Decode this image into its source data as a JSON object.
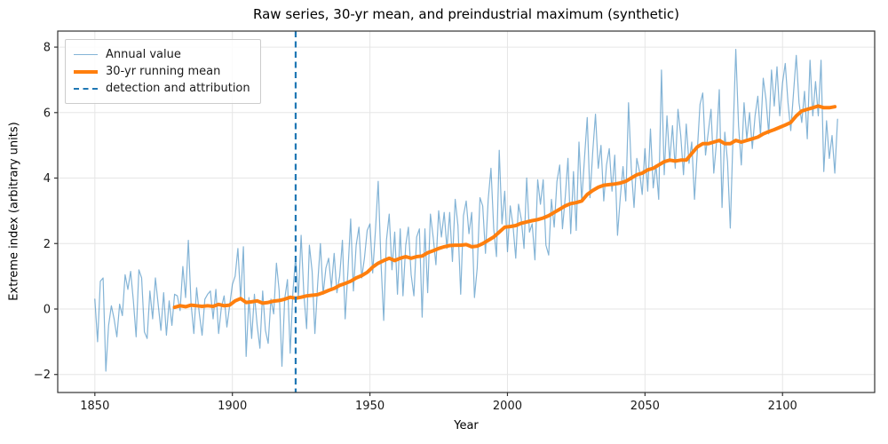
{
  "title": "Raw series, 30-yr mean, and preindustrial maximum (synthetic)",
  "xlabel": "Year",
  "ylabel": "Extreme index (arbitrary units)",
  "legend": {
    "position": "upper left",
    "items": [
      {
        "label": "Annual value",
        "swatch": "thin-line",
        "color": "#1f77b4",
        "alpha": 0.55
      },
      {
        "label": "30-yr running mean",
        "swatch": "thick-line",
        "color": "#ff7f0e"
      },
      {
        "label": "detection and attribution",
        "swatch": "dashed-line",
        "color": "#1f77b4"
      }
    ]
  },
  "colors": {
    "annual_line": "#1f77b4",
    "annual_alpha": 0.55,
    "running_mean_line": "#ff7f0e",
    "detection_line": "#1f77b4",
    "grid": "#e6e6e6",
    "spine": "#333333",
    "tick_text": "#1a1a1a",
    "background": "#ffffff"
  },
  "chart_data": {
    "type": "line",
    "title": "Raw series, 30-yr mean, and preindustrial maximum (synthetic)",
    "xlabel": "Year",
    "ylabel": "Extreme index (arbitrary units)",
    "grid": true,
    "legend_position": "upper left",
    "xlim": [
      1836.5,
      2133.5
    ],
    "ylim": [
      -2.55,
      8.49
    ],
    "xticks": [
      1850,
      1900,
      1950,
      2000,
      2050,
      2100
    ],
    "xtick_labels": [
      "1850",
      "1900",
      "1950",
      "2000",
      "2050",
      "2100"
    ],
    "yticks": [
      -2,
      0,
      2,
      4,
      6,
      8
    ],
    "ytick_labels": [
      "−2",
      "0",
      "2",
      "4",
      "6",
      "8"
    ],
    "series": [
      {
        "name": "Annual value",
        "kind": "line",
        "color": "#1f77b4",
        "alpha": 0.55,
        "line_width": 1.2,
        "start_year": 1850,
        "step": 1,
        "values": [
          0.3,
          -1.0,
          0.85,
          0.95,
          -1.9,
          -0.5,
          0.1,
          -0.3,
          -0.85,
          0.15,
          -0.2,
          1.05,
          0.6,
          1.15,
          0.25,
          -0.85,
          1.2,
          0.95,
          -0.7,
          -0.9,
          0.55,
          -0.3,
          0.95,
          0.15,
          -0.65,
          0.5,
          -0.8,
          0.25,
          -0.5,
          0.45,
          0.4,
          -0.05,
          1.3,
          0.35,
          2.1,
          0.15,
          -0.75,
          0.65,
          -0.15,
          -0.8,
          0.3,
          0.45,
          0.55,
          -0.3,
          0.6,
          -0.75,
          0.05,
          0.4,
          -0.55,
          0.1,
          0.75,
          1.0,
          1.85,
          0.3,
          1.9,
          -1.45,
          0.35,
          -0.9,
          0.45,
          -0.5,
          -1.2,
          0.55,
          -0.65,
          -1.05,
          0.3,
          -0.15,
          1.4,
          0.55,
          -1.75,
          0.3,
          0.9,
          -1.35,
          0.5,
          1.6,
          0.35,
          2.25,
          0.45,
          -0.6,
          1.95,
          1.15,
          -0.75,
          0.75,
          2.0,
          0.45,
          1.25,
          1.55,
          0.65,
          1.7,
          0.5,
          1.0,
          2.1,
          -0.3,
          1.15,
          2.75,
          0.55,
          1.95,
          2.5,
          0.95,
          1.55,
          2.4,
          2.6,
          1.1,
          2.4,
          3.9,
          1.45,
          -0.35,
          2.1,
          2.9,
          1.2,
          2.35,
          0.45,
          2.45,
          0.4,
          1.95,
          2.5,
          1.05,
          0.4,
          2.2,
          2.45,
          -0.25,
          2.45,
          0.5,
          2.9,
          2.2,
          1.35,
          3.0,
          2.2,
          2.95,
          1.85,
          2.95,
          1.45,
          3.35,
          2.55,
          0.45,
          2.85,
          3.3,
          2.3,
          2.95,
          0.35,
          1.25,
          3.4,
          3.15,
          1.7,
          3.35,
          4.3,
          2.45,
          1.6,
          4.85,
          2.6,
          3.6,
          1.75,
          3.15,
          2.55,
          1.55,
          3.2,
          2.75,
          1.85,
          4.0,
          2.35,
          2.6,
          1.5,
          3.95,
          3.2,
          3.95,
          1.95,
          1.65,
          3.35,
          2.5,
          3.9,
          4.4,
          2.45,
          3.4,
          4.6,
          2.3,
          4.2,
          2.4,
          5.1,
          3.3,
          4.6,
          5.85,
          3.4,
          4.8,
          5.95,
          4.3,
          5.0,
          3.3,
          4.4,
          4.9,
          3.6,
          4.7,
          2.25,
          3.4,
          4.35,
          3.3,
          6.3,
          4.3,
          3.1,
          4.6,
          4.2,
          3.5,
          4.9,
          3.6,
          5.5,
          3.7,
          4.4,
          3.35,
          7.3,
          4.1,
          5.9,
          4.5,
          5.6,
          4.3,
          6.1,
          5.3,
          4.1,
          5.65,
          4.45,
          5.1,
          3.35,
          4.8,
          6.25,
          6.6,
          4.7,
          5.4,
          6.1,
          4.15,
          5.1,
          6.7,
          3.1,
          5.4,
          4.5,
          2.47,
          5.3,
          7.93,
          5.6,
          4.4,
          6.3,
          5.2,
          6.0,
          4.9,
          5.9,
          6.5,
          5.3,
          7.05,
          6.4,
          5.35,
          7.3,
          6.2,
          7.4,
          5.9,
          6.9,
          7.5,
          6.3,
          5.45,
          6.6,
          7.75,
          6.3,
          5.7,
          6.65,
          5.2,
          7.6,
          5.9,
          6.95,
          5.9,
          7.6,
          4.2,
          5.75,
          4.6,
          5.3,
          4.15,
          5.8
        ]
      },
      {
        "name": "30-yr running mean",
        "kind": "line",
        "color": "#ff7f0e",
        "alpha": 1.0,
        "line_width": 4,
        "start_year": 1879,
        "step": 2,
        "values": [
          0.05,
          0.1,
          0.07,
          0.12,
          0.1,
          0.08,
          0.1,
          0.08,
          0.14,
          0.1,
          0.12,
          0.25,
          0.32,
          0.2,
          0.22,
          0.25,
          0.18,
          0.2,
          0.24,
          0.26,
          0.3,
          0.36,
          0.33,
          0.36,
          0.4,
          0.42,
          0.44,
          0.5,
          0.57,
          0.63,
          0.72,
          0.78,
          0.85,
          0.95,
          1.02,
          1.12,
          1.28,
          1.4,
          1.48,
          1.55,
          1.48,
          1.55,
          1.6,
          1.55,
          1.6,
          1.62,
          1.72,
          1.78,
          1.85,
          1.9,
          1.94,
          1.95,
          1.95,
          1.97,
          1.9,
          1.92,
          2.0,
          2.1,
          2.2,
          2.35,
          2.5,
          2.52,
          2.55,
          2.62,
          2.66,
          2.7,
          2.73,
          2.78,
          2.85,
          2.95,
          3.05,
          3.15,
          3.22,
          3.25,
          3.3,
          3.5,
          3.62,
          3.72,
          3.78,
          3.8,
          3.82,
          3.85,
          3.9,
          4.0,
          4.1,
          4.15,
          4.25,
          4.3,
          4.4,
          4.5,
          4.55,
          4.52,
          4.55,
          4.55,
          4.75,
          4.95,
          5.05,
          5.05,
          5.1,
          5.15,
          5.05,
          5.05,
          5.15,
          5.1,
          5.15,
          5.2,
          5.25,
          5.35,
          5.42,
          5.48,
          5.55,
          5.62,
          5.7,
          5.9,
          6.05,
          6.1,
          6.15,
          6.2,
          6.15,
          6.15,
          6.18
        ]
      },
      {
        "name": "detection and attribution",
        "kind": "vline",
        "x": 1923,
        "color": "#1f77b4",
        "line_width": 2.2,
        "dash": "7 4.5"
      }
    ]
  }
}
